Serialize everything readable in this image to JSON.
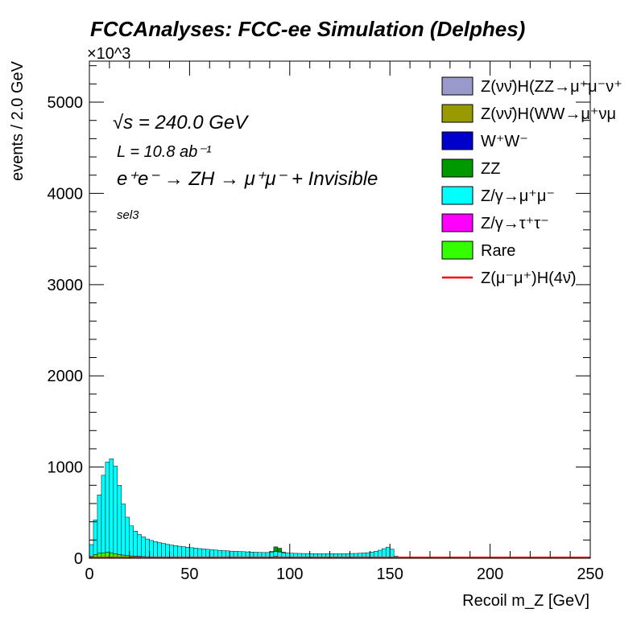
{
  "chart_data": {
    "type": "bar",
    "title": "FCCAnalyses: FCC-ee Simulation (Delphes)",
    "xlabel": "Recoil m_Z [GeV]",
    "ylabel": "events / 2.0 GeV",
    "y_multiplier": "×10^3",
    "xlim": [
      0,
      250
    ],
    "ylim": [
      0,
      5450
    ],
    "x_ticks": [
      0,
      50,
      100,
      150,
      200,
      250
    ],
    "y_ticks": [
      0,
      1000,
      2000,
      3000,
      4000,
      5000
    ],
    "x_tick_labels": [
      "0",
      "50",
      "100",
      "150",
      "200",
      "250"
    ],
    "y_tick_labels": [
      "0",
      "1000",
      "2000",
      "3000",
      "4000",
      "5000"
    ],
    "bin_width": 2.0,
    "annotations": {
      "sqrt_s": "√s = 240.0 GeV",
      "lumi": "L = 10.8 ab⁻¹",
      "process": "e⁺e⁻ → ZH → μ⁺μ⁻ + Invisible",
      "selection": "sel3"
    },
    "legend_position": "top-right",
    "bin_low_edges": [
      0,
      2,
      4,
      6,
      8,
      10,
      12,
      14,
      16,
      18,
      20,
      22,
      24,
      26,
      28,
      30,
      32,
      34,
      36,
      38,
      40,
      42,
      44,
      46,
      48,
      50,
      52,
      54,
      56,
      58,
      60,
      62,
      64,
      66,
      68,
      70,
      72,
      74,
      76,
      78,
      80,
      82,
      84,
      86,
      88,
      90,
      92,
      94,
      96,
      98,
      100,
      102,
      104,
      106,
      108,
      110,
      112,
      114,
      116,
      118,
      120,
      122,
      124,
      126,
      128,
      130,
      132,
      134,
      136,
      138,
      140,
      142,
      144,
      146,
      148,
      150,
      152,
      154
    ],
    "stack": [
      {
        "name": "Rare",
        "color": "#33ff00",
        "values": [
          20,
          40,
          55,
          60,
          65,
          60,
          50,
          40,
          35,
          30,
          25,
          22,
          20,
          18,
          16,
          15,
          14,
          13,
          12,
          11,
          10,
          10,
          9,
          9,
          8,
          8,
          8,
          7,
          7,
          7,
          7,
          6,
          6,
          6,
          6,
          6,
          6,
          6,
          6,
          6,
          6,
          6,
          6,
          7,
          8,
          15,
          20,
          15,
          8,
          6,
          5,
          5,
          5,
          5,
          5,
          5,
          5,
          5,
          5,
          5,
          5,
          5,
          5,
          5,
          5,
          5,
          5,
          5,
          6,
          6,
          7,
          8,
          8,
          10,
          12,
          10,
          5,
          0
        ]
      },
      {
        "name": "Z/γ→τ⁺τ⁻",
        "color": "#ff00ff",
        "values": [
          0,
          0,
          0,
          0,
          0,
          0,
          0,
          0,
          0,
          0,
          0,
          0,
          0,
          0,
          0,
          0,
          0,
          0,
          0,
          0,
          0,
          0,
          0,
          0,
          0,
          0,
          0,
          0,
          0,
          0,
          0,
          0,
          0,
          0,
          0,
          0,
          0,
          0,
          0,
          0,
          0,
          0,
          0,
          0,
          0,
          0,
          0,
          0,
          0,
          0,
          0,
          0,
          0,
          0,
          0,
          0,
          0,
          0,
          0,
          0,
          0,
          0,
          0,
          0,
          0,
          0,
          0,
          0,
          0,
          0,
          0,
          0,
          0,
          0,
          0,
          0,
          0,
          0
        ]
      },
      {
        "name": "Z/γ→μ⁺μ⁻",
        "color": "#00ffff",
        "values": [
          130,
          380,
          640,
          850,
          990,
          1030,
          960,
          760,
          560,
          420,
          330,
          275,
          240,
          215,
          195,
          180,
          168,
          158,
          150,
          142,
          135,
          129,
          123,
          118,
          113,
          108,
          103,
          99,
          95,
          91,
          87,
          84,
          81,
          78,
          75,
          72,
          70,
          68,
          66,
          64,
          62,
          60,
          58,
          56,
          55,
          54,
          55,
          55,
          53,
          51,
          50,
          49,
          48,
          47,
          47,
          46,
          46,
          45,
          45,
          45,
          45,
          45,
          45,
          46,
          46,
          47,
          48,
          50,
          52,
          55,
          60,
          68,
          80,
          95,
          110,
          90,
          20,
          0
        ]
      },
      {
        "name": "ZZ",
        "color": "#009900",
        "values": [
          0,
          0,
          0,
          0,
          0,
          0,
          0,
          0,
          0,
          0,
          0,
          0,
          0,
          0,
          0,
          0,
          0,
          0,
          0,
          0,
          0,
          0,
          0,
          0,
          0,
          0,
          0,
          0,
          0,
          0,
          0,
          0,
          0,
          0,
          0,
          0,
          0,
          0,
          0,
          0,
          0,
          0,
          0,
          0,
          0,
          5,
          50,
          40,
          5,
          0,
          0,
          0,
          0,
          0,
          0,
          0,
          0,
          0,
          0,
          0,
          0,
          0,
          0,
          0,
          0,
          0,
          0,
          0,
          0,
          0,
          0,
          0,
          0,
          0,
          0,
          0,
          0,
          0
        ]
      },
      {
        "name": "W⁺W⁻",
        "color": "#0000cc",
        "values": [
          0,
          0,
          0,
          0,
          0,
          0,
          0,
          0,
          0,
          0,
          0,
          0,
          0,
          0,
          0,
          0,
          0,
          0,
          0,
          0,
          0,
          0,
          0,
          0,
          0,
          0,
          0,
          0,
          0,
          0,
          0,
          0,
          0,
          0,
          0,
          0,
          0,
          0,
          0,
          0,
          0,
          0,
          0,
          0,
          0,
          0,
          0,
          0,
          0,
          0,
          0,
          0,
          0,
          0,
          0,
          0,
          0,
          0,
          0,
          0,
          0,
          0,
          0,
          0,
          0,
          0,
          0,
          0,
          0,
          0,
          0,
          0,
          0,
          0,
          0,
          0,
          0,
          0
        ]
      },
      {
        "name": "Z(νν̄)H(WW→μ⁺νμ⁻ν̄)",
        "color": "#999900",
        "values": [
          0,
          0,
          0,
          0,
          0,
          0,
          0,
          0,
          0,
          0,
          0,
          0,
          0,
          0,
          0,
          0,
          0,
          0,
          0,
          0,
          0,
          0,
          0,
          0,
          0,
          0,
          0,
          0,
          0,
          0,
          0,
          0,
          0,
          0,
          0,
          0,
          0,
          0,
          0,
          0,
          0,
          0,
          0,
          0,
          0,
          0,
          0,
          0,
          0,
          0,
          0,
          0,
          0,
          0,
          0,
          0,
          0,
          0,
          0,
          0,
          0,
          0,
          0,
          0,
          0,
          0,
          0,
          0,
          0,
          0,
          0,
          0,
          0,
          0,
          0,
          0,
          0,
          0
        ]
      },
      {
        "name": "Z(νν̄)H(ZZ→μ⁺μ⁻ν⁺ν⁻)",
        "color": "#9999cc",
        "values": [
          0,
          0,
          0,
          0,
          0,
          0,
          0,
          0,
          0,
          0,
          0,
          0,
          0,
          0,
          0,
          0,
          0,
          0,
          0,
          0,
          0,
          0,
          0,
          0,
          0,
          0,
          0,
          0,
          0,
          0,
          0,
          0,
          0,
          0,
          0,
          0,
          0,
          0,
          0,
          0,
          0,
          0,
          0,
          0,
          0,
          0,
          0,
          0,
          0,
          0,
          0,
          0,
          0,
          0,
          0,
          0,
          0,
          0,
          0,
          0,
          0,
          0,
          0,
          0,
          0,
          0,
          0,
          0,
          0,
          0,
          0,
          0,
          0,
          0,
          0,
          0,
          0,
          0
        ]
      }
    ],
    "signal": {
      "name": "Z(μ⁻μ⁺)H(4ν̄)",
      "color": "#ff0000",
      "value": 0,
      "x_from": 0,
      "x_to": 250
    },
    "legend": [
      {
        "label": "Z(νν̄)H(ZZ→μ⁺μ⁻ν⁺",
        "color": "#9999cc",
        "kind": "box"
      },
      {
        "label": "Z(νν̄)H(WW→μ⁺νμ",
        "color": "#999900",
        "kind": "box"
      },
      {
        "label": "W⁺W⁻",
        "color": "#0000cc",
        "kind": "box"
      },
      {
        "label": "ZZ",
        "color": "#009900",
        "kind": "box"
      },
      {
        "label": "Z/γ→μ⁺μ⁻",
        "color": "#00ffff",
        "kind": "box"
      },
      {
        "label": "Z/γ→τ⁺τ⁻",
        "color": "#ff00ff",
        "kind": "box"
      },
      {
        "label": "Rare",
        "color": "#33ff00",
        "kind": "box"
      },
      {
        "label": "Z(μ⁻μ⁺)H(4ν̄)",
        "color": "#ff0000",
        "kind": "line"
      }
    ]
  }
}
